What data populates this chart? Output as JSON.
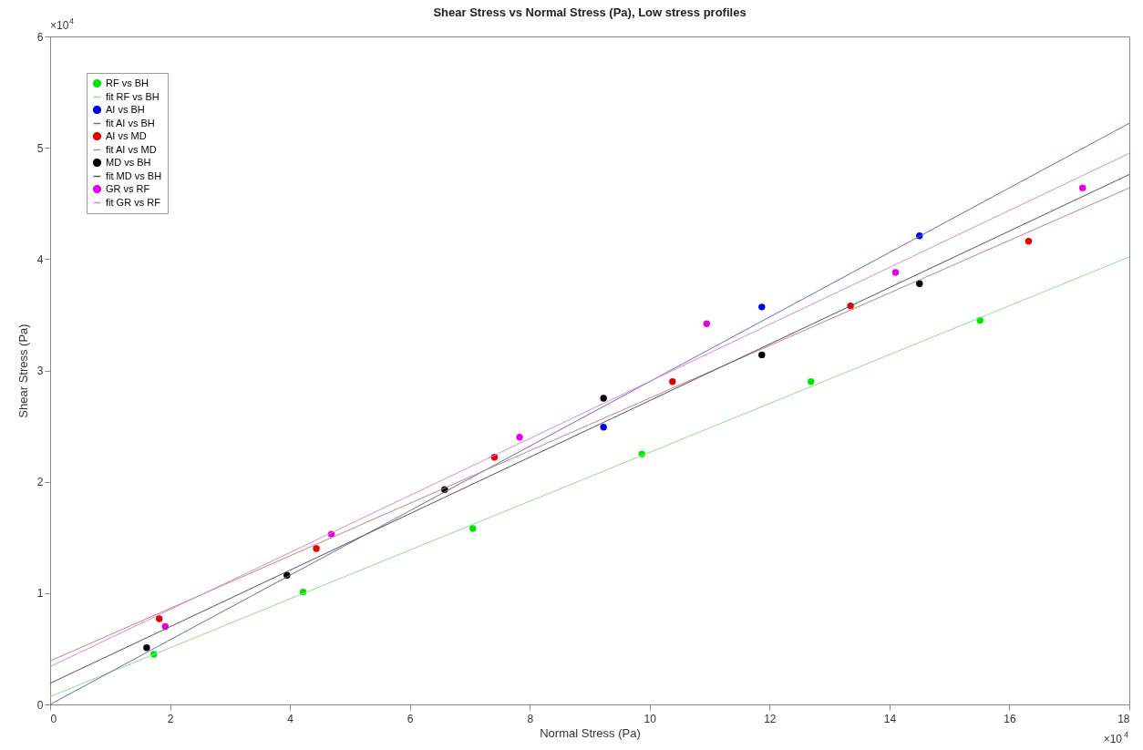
{
  "chart_data": {
    "type": "scatter",
    "title": "Shear Stress vs Normal Stress (Pa), Low stress profiles",
    "xlabel": "Normal Stress (Pa)",
    "ylabel": "Shear Stress (Pa)",
    "annotations": [
      "×10$^{4}$",
      "×10$^{4}$"
    ],
    "xlim": [
      0,
      18
    ],
    "ylim": [
      0,
      6
    ],
    "xticks": [
      0,
      2,
      4,
      6,
      8,
      10,
      12,
      14,
      16,
      18
    ],
    "yticks": [
      0,
      1,
      2,
      3,
      4,
      5,
      6
    ],
    "grid": false,
    "legend": "top left",
    "marker": "circle",
    "series": [
      {
        "name": "RF vs BH",
        "color": "#00e600",
        "x": [
          1.73,
          4.22,
          7.05,
          9.87,
          12.69,
          15.51
        ],
        "values": [
          0.45,
          1.01,
          1.58,
          2.25,
          2.9,
          3.45
        ]
      },
      {
        "name": "fit RF vs BH",
        "type": "line",
        "marker": "none",
        "line_style": "solid",
        "color": "#8fdf8f",
        "x": [
          0,
          18
        ],
        "values": [
          0.07,
          4.02
        ]
      },
      {
        "name": "AI vs BH",
        "color": "#0000e6",
        "x": [
          9.23,
          11.87,
          14.5
        ],
        "values": [
          2.49,
          3.57,
          4.21
        ]
      },
      {
        "name": "fit AI vs BH",
        "type": "line",
        "marker": "none",
        "line_style": "solid",
        "color": "#6a6ab8",
        "x": [
          0,
          18
        ],
        "values": [
          0,
          5.22
        ]
      },
      {
        "name": "AI vs MD",
        "color": "#e60000",
        "x": [
          1.82,
          4.44,
          7.41,
          10.38,
          13.35,
          16.32
        ],
        "values": [
          0.77,
          1.4,
          2.22,
          2.9,
          3.58,
          4.16
        ]
      },
      {
        "name": "fit AI vs MD",
        "type": "line",
        "marker": "none",
        "line_style": "solid",
        "color": "#cc8080",
        "x": [
          0,
          18
        ],
        "values": [
          0.39,
          4.64
        ]
      },
      {
        "name": "MD vs BH",
        "color": "#000000",
        "x": [
          1.61,
          3.95,
          6.58,
          9.23,
          11.87,
          14.5
        ],
        "values": [
          0.51,
          1.16,
          1.93,
          2.75,
          3.14,
          3.78
        ]
      },
      {
        "name": "fit MD vs BH",
        "type": "line",
        "marker": "none",
        "line_style": "solid",
        "color": "#555555",
        "x": [
          0,
          18
        ],
        "values": [
          0.19,
          4.76
        ]
      },
      {
        "name": "GR vs RF",
        "color": "#e600e6",
        "x": [
          1.92,
          4.69,
          7.83,
          10.95,
          14.1,
          17.22
        ],
        "values": [
          0.7,
          1.53,
          2.4,
          3.42,
          3.88,
          4.64
        ]
      },
      {
        "name": "fit GR vs RF",
        "type": "line",
        "marker": "none",
        "line_style": "solid",
        "color": "#d88ad8",
        "x": [
          0,
          18
        ],
        "values": [
          0.34,
          4.95
        ]
      }
    ]
  }
}
